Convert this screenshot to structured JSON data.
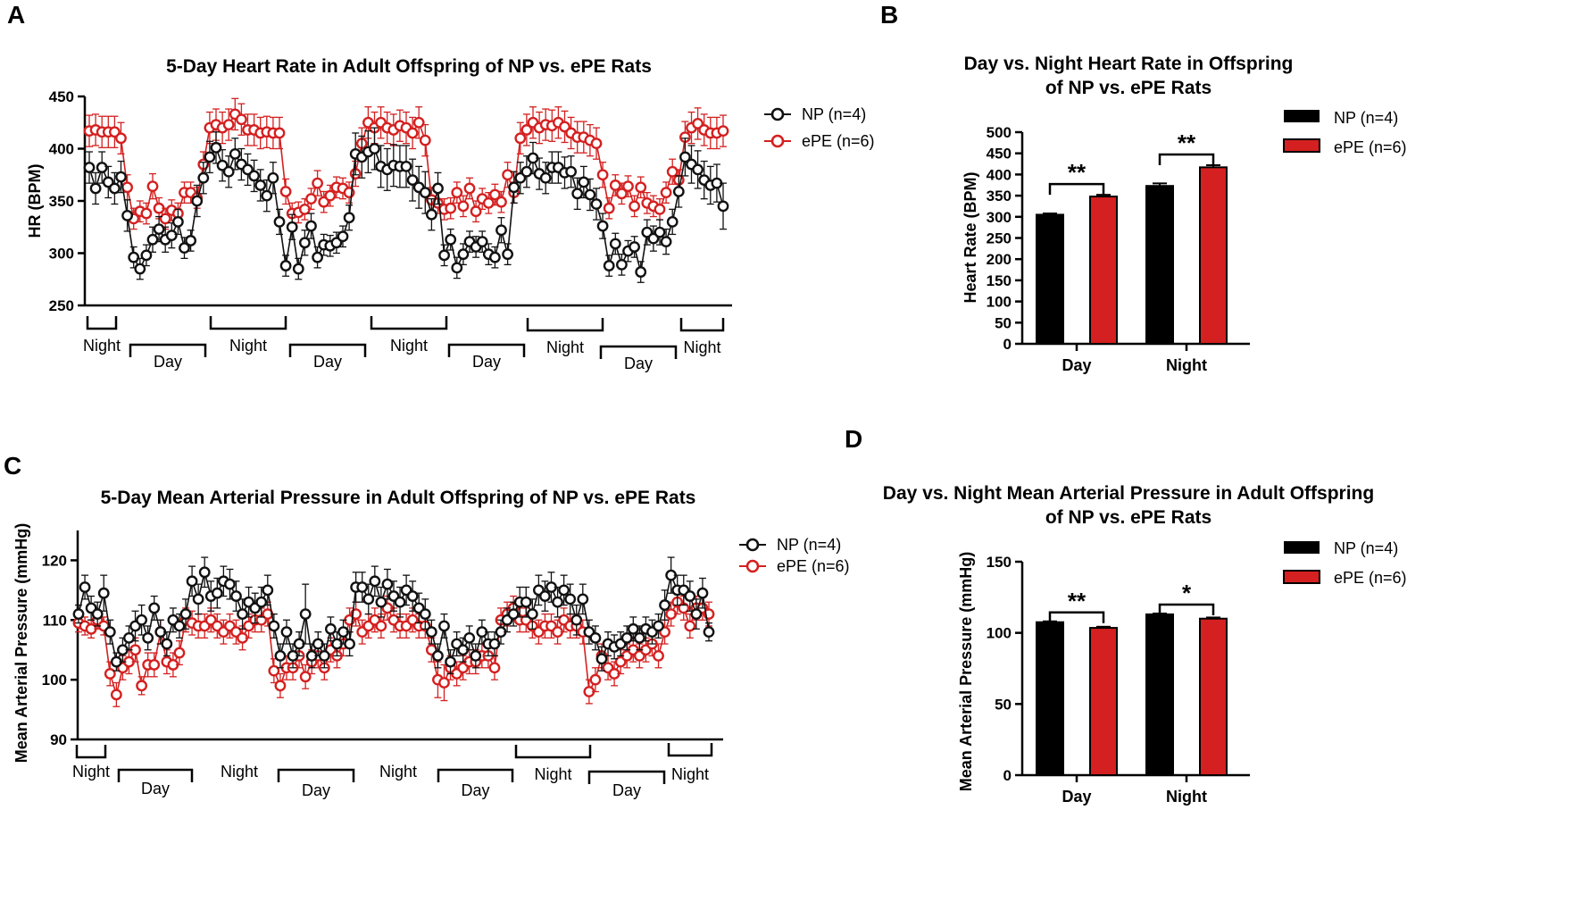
{
  "colors": {
    "np": "#111111",
    "epe": "#d42020",
    "axis": "#000000",
    "np_error": "#333333",
    "epe_error": "#d42020"
  },
  "panels": {
    "a": "A",
    "b": "B",
    "c": "C",
    "d": "D"
  },
  "chart_data": [
    {
      "id": "A",
      "type": "line",
      "title": "5-Day Heart Rate in Adult Offspring of NP vs. ePE Rats",
      "ylabel": "HR (BPM)",
      "xlabel": "",
      "ylim": [
        250,
        450
      ],
      "yticks": [
        250,
        300,
        350,
        400,
        450
      ],
      "legend": [
        "NP (n=4)",
        "ePE (n=6)"
      ],
      "series": [
        {
          "name": "NP (n=4)",
          "values": [
            382,
            362,
            382,
            368,
            362,
            373,
            336,
            296,
            285,
            298,
            313,
            323,
            313,
            317,
            330,
            305,
            312,
            350,
            372,
            392,
            401,
            384,
            378,
            395,
            385,
            380,
            374,
            365,
            355,
            372,
            330,
            288,
            325,
            285,
            310,
            326,
            296,
            308,
            307,
            310,
            316,
            334,
            395,
            392,
            397,
            400,
            383,
            380,
            384,
            383,
            383,
            370,
            363,
            358,
            337,
            362,
            298,
            313,
            286,
            299,
            311,
            306,
            311,
            299,
            296,
            322,
            299,
            363,
            372,
            378,
            391,
            376,
            372,
            382,
            382,
            377,
            378,
            357,
            368,
            356,
            347,
            326,
            288,
            309,
            289,
            302,
            306,
            282,
            320,
            314,
            320,
            311,
            330,
            359,
            392,
            385,
            380,
            370,
            365,
            367,
            345
          ],
          "errors": [
            15,
            15,
            15,
            15,
            15,
            15,
            15,
            10,
            10,
            10,
            12,
            12,
            12,
            12,
            12,
            10,
            10,
            15,
            15,
            15,
            15,
            15,
            15,
            15,
            15,
            15,
            15,
            15,
            15,
            15,
            12,
            10,
            12,
            10,
            12,
            12,
            10,
            10,
            10,
            10,
            10,
            12,
            20,
            20,
            20,
            20,
            20,
            20,
            20,
            20,
            20,
            20,
            20,
            20,
            15,
            15,
            10,
            10,
            10,
            10,
            10,
            10,
            10,
            10,
            10,
            12,
            10,
            15,
            15,
            15,
            15,
            15,
            15,
            15,
            15,
            15,
            15,
            15,
            15,
            15,
            15,
            12,
            10,
            10,
            10,
            10,
            10,
            10,
            12,
            12,
            12,
            12,
            12,
            15,
            18,
            18,
            18,
            18,
            18,
            18,
            22
          ]
        },
        {
          "name": "ePE (n=6)",
          "values": [
            417,
            418,
            416,
            416,
            416,
            410,
            363,
            333,
            340,
            338,
            364,
            343,
            333,
            341,
            338,
            358,
            358,
            353,
            385,
            420,
            423,
            420,
            423,
            433,
            428,
            418,
            418,
            415,
            416,
            415,
            415,
            359,
            338,
            339,
            342,
            352,
            367,
            349,
            355,
            363,
            362,
            358,
            376,
            405,
            425,
            420,
            425,
            420,
            418,
            422,
            420,
            415,
            425,
            408,
            351,
            348,
            342,
            343,
            358,
            345,
            362,
            340,
            352,
            348,
            356,
            349,
            375,
            358,
            410,
            418,
            425,
            420,
            423,
            422,
            425,
            421,
            415,
            411,
            411,
            408,
            405,
            375,
            343,
            365,
            357,
            364,
            345,
            363,
            348,
            345,
            342,
            358,
            378,
            370,
            411,
            420,
            424,
            418,
            415,
            415,
            417
          ],
          "errors": [
            15,
            15,
            15,
            15,
            15,
            15,
            12,
            10,
            10,
            10,
            12,
            10,
            10,
            10,
            10,
            10,
            10,
            10,
            12,
            15,
            15,
            15,
            15,
            15,
            15,
            15,
            15,
            15,
            15,
            15,
            15,
            12,
            10,
            10,
            10,
            10,
            12,
            10,
            10,
            10,
            10,
            10,
            12,
            15,
            15,
            15,
            15,
            15,
            15,
            15,
            15,
            15,
            15,
            15,
            12,
            10,
            10,
            10,
            10,
            10,
            10,
            10,
            10,
            10,
            10,
            10,
            12,
            10,
            15,
            15,
            15,
            15,
            15,
            15,
            15,
            15,
            15,
            15,
            15,
            15,
            15,
            12,
            10,
            10,
            10,
            10,
            10,
            10,
            10,
            10,
            10,
            10,
            12,
            10,
            15,
            15,
            15,
            15,
            15,
            15,
            15
          ]
        }
      ],
      "periods": [
        "Night",
        "Day",
        "Night",
        "Day",
        "Night",
        "Day",
        "Night",
        "Day",
        "Night"
      ]
    },
    {
      "id": "B",
      "type": "bar",
      "title": [
        "Day vs. Night Heart Rate in Offspring",
        "of NP vs. ePE Rats"
      ],
      "ylabel": "Heart Rate (BPM)",
      "categories": [
        "Day",
        "Night"
      ],
      "ylim": [
        0,
        500
      ],
      "yticks": [
        0,
        50,
        100,
        150,
        200,
        250,
        300,
        350,
        400,
        450,
        500
      ],
      "series": [
        {
          "name": "NP (n=4)",
          "values": [
            305,
            373
          ],
          "errors": [
            3,
            6
          ]
        },
        {
          "name": "ePE (n=6)",
          "values": [
            348,
            417
          ],
          "errors": [
            4,
            5
          ]
        }
      ],
      "significance": [
        "**",
        "**"
      ]
    },
    {
      "id": "C",
      "type": "line",
      "title": "5-Day Mean Arterial Pressure in Adult Offspring of NP vs. ePE Rats",
      "ylabel": "Mean Arterial Pressure (mmHg)",
      "xlabel": "",
      "ylim": [
        90,
        125
      ],
      "yticks": [
        90,
        100,
        110,
        120
      ],
      "legend": [
        "NP (n=4)",
        "ePE (n=6)"
      ],
      "series": [
        {
          "name": "NP (n=4)",
          "values": [
            111,
            115.5,
            112,
            111,
            114.5,
            108,
            103,
            105,
            107,
            109,
            110,
            107,
            112,
            108,
            106,
            110,
            109,
            111,
            116.5,
            113.5,
            118,
            114,
            114.5,
            116.5,
            116,
            114,
            111,
            113,
            112,
            113,
            115,
            109,
            104,
            108,
            104,
            106,
            111,
            104,
            106,
            104,
            108.5,
            106,
            108,
            106,
            115.5,
            115.5,
            113.5,
            116.5,
            113,
            116,
            114,
            113,
            115,
            114,
            112,
            111,
            108,
            104,
            109,
            103,
            106,
            105,
            107,
            104,
            108,
            106,
            106,
            108,
            110,
            111,
            113,
            113,
            111,
            115,
            114,
            115.5,
            113,
            115,
            113.5,
            110,
            113.5,
            108,
            107,
            103.5,
            106,
            105.5,
            106,
            107,
            108.5,
            107,
            108.5,
            108,
            109,
            112.5,
            117.5,
            115,
            115,
            114,
            111,
            114.5,
            108
          ],
          "errors": [
            1.5,
            2,
            2,
            2,
            3,
            2,
            1.5,
            2,
            2,
            2.5,
            2.5,
            2,
            2,
            2,
            2,
            2,
            2,
            2.5,
            2.5,
            2.5,
            2.5,
            2.5,
            2.5,
            2.5,
            2.5,
            2.5,
            2.5,
            2.5,
            2.5,
            2.5,
            2.5,
            2,
            2,
            2,
            2,
            2,
            5,
            2,
            2,
            2,
            2,
            2,
            2,
            2,
            2.5,
            2.5,
            2.5,
            2.5,
            2.5,
            2.5,
            2.5,
            2.5,
            2.5,
            2.5,
            2.5,
            2.5,
            2,
            2,
            2,
            2,
            2,
            2,
            2,
            2,
            2,
            2,
            2,
            2,
            2,
            2,
            2.5,
            2.5,
            2.5,
            2.5,
            2.5,
            2.5,
            2.5,
            2.5,
            2.5,
            2.5,
            2.5,
            2,
            2,
            2,
            2,
            2,
            2,
            2,
            2,
            2,
            2,
            2,
            2,
            2.5,
            3,
            2.5,
            2.5,
            2.5,
            2.5,
            2.5,
            1.5
          ]
        },
        {
          "name": "ePE (n=6)",
          "values": [
            109.5,
            109,
            108.5,
            110,
            109,
            101,
            97.5,
            102,
            103,
            105,
            99,
            102.5,
            102.5,
            108,
            103,
            102.5,
            104.5,
            110,
            109.5,
            109,
            109,
            110,
            109,
            108,
            109,
            108,
            107,
            109,
            110,
            110,
            111,
            101.5,
            99,
            102,
            102,
            104,
            100.5,
            103,
            104,
            102,
            105,
            104,
            106,
            110,
            111,
            108,
            109,
            110,
            109,
            112,
            110,
            109,
            109,
            110,
            109,
            109,
            105,
            100,
            99.5,
            102,
            101,
            102,
            103,
            103,
            104,
            104,
            102,
            110,
            111,
            112,
            110,
            110,
            109,
            108,
            109,
            109,
            108,
            110,
            109,
            109,
            108,
            98,
            100,
            104,
            102,
            101,
            103,
            104,
            105,
            104,
            105,
            106,
            104,
            108,
            111,
            113,
            112,
            109,
            112,
            112,
            111
          ],
          "errors": [
            1.5,
            1.5,
            1.5,
            1.5,
            1.5,
            2,
            2,
            2,
            2,
            2,
            1.5,
            2,
            2,
            2,
            2,
            2,
            2,
            2,
            2,
            2,
            2,
            2,
            2,
            2,
            2,
            2,
            2,
            2,
            2,
            2,
            2,
            2,
            2,
            2,
            2,
            2,
            2,
            2,
            2,
            2,
            2,
            2,
            2,
            2,
            2,
            2,
            2,
            2,
            2,
            2,
            2,
            2,
            2,
            2,
            2,
            2,
            2,
            3,
            3,
            2,
            2,
            2,
            2,
            2,
            2,
            2,
            2,
            2,
            2,
            2,
            2,
            2,
            2,
            2,
            2,
            2,
            2,
            2,
            2,
            2,
            2,
            2,
            2,
            2,
            2,
            2,
            2,
            2,
            2,
            2,
            2,
            2,
            2,
            2,
            2,
            2,
            2,
            2,
            2,
            2,
            2
          ]
        }
      ],
      "periods": [
        "Night",
        "Day",
        "Night",
        "Day",
        "Night",
        "Day",
        "Night",
        "Day",
        "Night"
      ]
    },
    {
      "id": "D",
      "type": "bar",
      "title": [
        "Day vs. Night Mean Arterial Pressure in Adult Offspring",
        "of NP vs. ePE Rats"
      ],
      "ylabel": "Mean Arterial Pressure (mmHg)",
      "categories": [
        "Day",
        "Night"
      ],
      "ylim": [
        0,
        150
      ],
      "yticks": [
        0,
        50,
        100,
        150
      ],
      "series": [
        {
          "name": "NP (n=4)",
          "values": [
            107.5,
            113
          ],
          "errors": [
            0.6,
            0.6
          ]
        },
        {
          "name": "ePE (n=6)",
          "values": [
            103.5,
            110
          ],
          "errors": [
            0.8,
            0.8
          ]
        }
      ],
      "significance": [
        "**",
        "*"
      ]
    }
  ]
}
